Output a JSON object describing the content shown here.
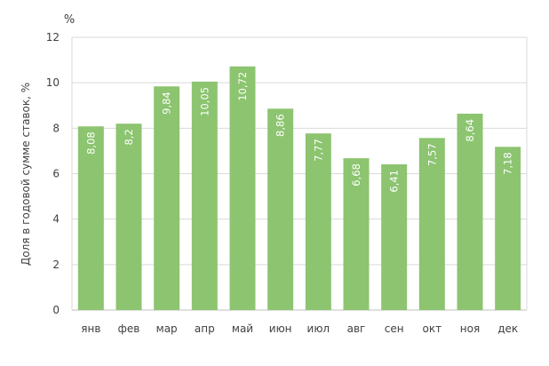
{
  "chart_data": {
    "type": "bar",
    "categories": [
      "янв",
      "фев",
      "мар",
      "апр",
      "май",
      "июн",
      "июл",
      "авг",
      "сен",
      "окт",
      "ноя",
      "дек"
    ],
    "values": [
      8.08,
      8.2,
      9.84,
      10.05,
      10.72,
      8.86,
      7.77,
      6.68,
      6.41,
      7.57,
      8.64,
      7.18
    ],
    "value_labels": [
      "8,08",
      "8,2",
      "9,84",
      "10,05",
      "10,72",
      "8,86",
      "7,77",
      "6,68",
      "6,41",
      "7,57",
      "8,64",
      "7,18"
    ],
    "y_ticks": [
      "0",
      "2",
      "4",
      "6",
      "8",
      "10",
      "12"
    ],
    "ylim": [
      0,
      12
    ],
    "title": "",
    "xlabel": "",
    "ylabel": "Доля в годовой сумме ставок, %",
    "unit_label": "%",
    "grid": true,
    "bar_color": "#8cc470",
    "grid_color": "#d9d9d9",
    "label_color": "#ffffff"
  }
}
